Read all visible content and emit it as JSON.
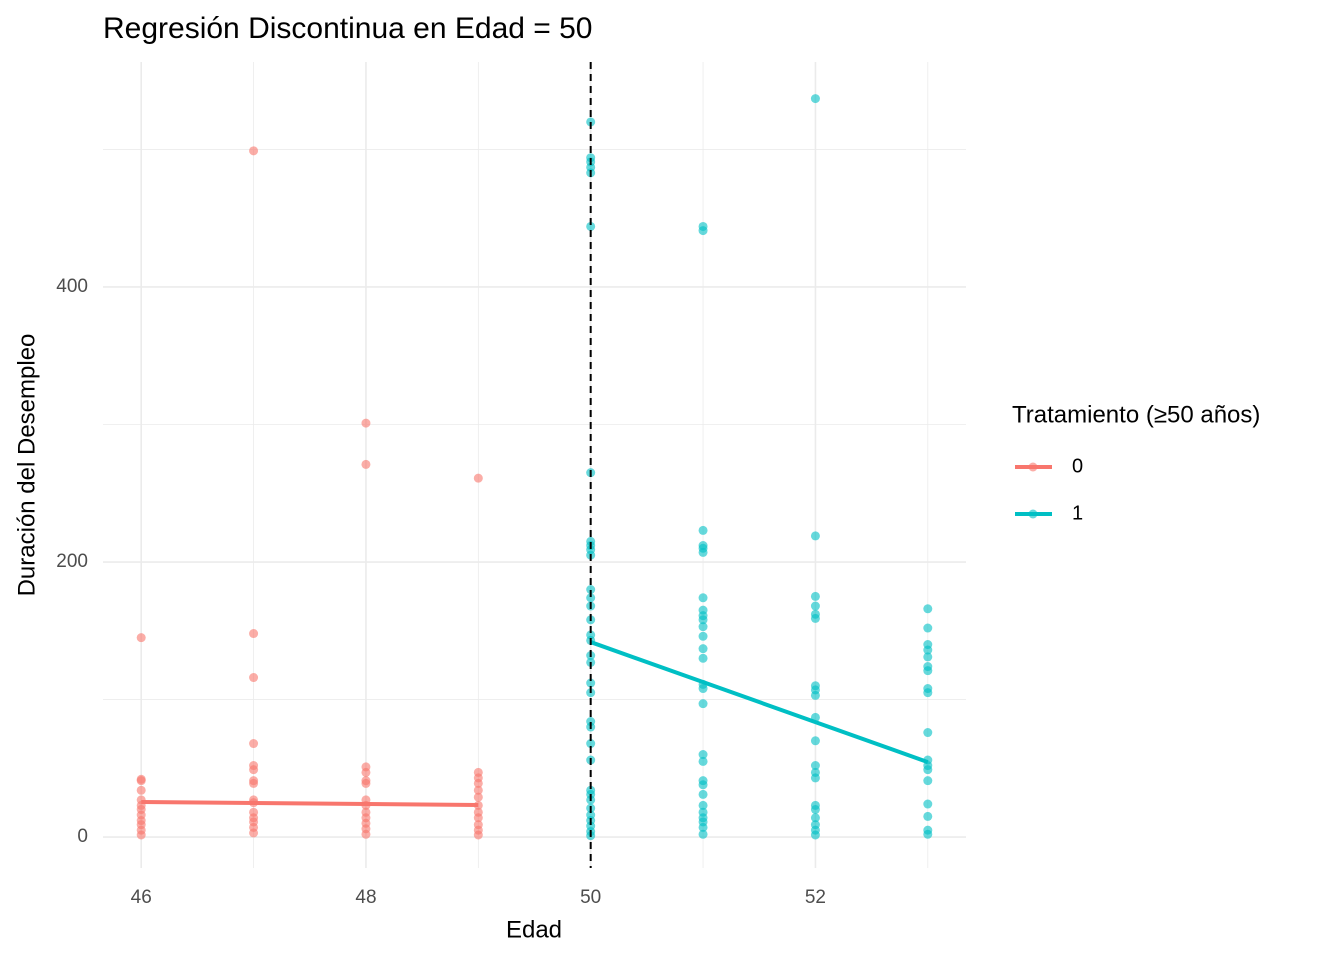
{
  "chart_data": {
    "type": "scatter",
    "title": "Regresión Discontinua en Edad = 50",
    "xlabel": "Edad",
    "ylabel": "Duración del Desempleo",
    "xlim": [
      45.66,
      53.34
    ],
    "ylim": [
      -22.5,
      563.6
    ],
    "xticks": [
      46,
      48,
      50,
      52
    ],
    "yticks": [
      0,
      200,
      400
    ],
    "xminorticks": [
      47,
      49,
      51,
      53
    ],
    "yminorticks": [
      100,
      300,
      500
    ],
    "grid": true,
    "vline": 50,
    "legend_title": "Tratamiento (≥50 años)",
    "legend": "right",
    "series": [
      {
        "name": "0",
        "color": "#F8766D",
        "x": [
          46,
          46,
          46,
          46,
          46,
          46,
          46,
          46,
          46,
          46,
          46,
          46,
          47,
          47,
          47,
          47,
          47,
          47,
          47,
          47,
          47,
          47,
          47,
          47,
          47,
          47,
          47,
          48,
          48,
          48,
          48,
          48,
          48,
          48,
          48,
          48,
          48,
          48,
          48,
          48,
          49,
          49,
          49,
          49,
          49,
          49,
          49,
          49,
          49,
          49,
          49,
          49
        ],
        "values": [
          145,
          42,
          41,
          34,
          27,
          23,
          20,
          16,
          12,
          9,
          5,
          1.5,
          499,
          148,
          116,
          68,
          52,
          49,
          41,
          39,
          27,
          25,
          18,
          14,
          11,
          7,
          3,
          301,
          271,
          51,
          47,
          41,
          39,
          27,
          23,
          18,
          14,
          10,
          6,
          2,
          261,
          47,
          43,
          39,
          34,
          29,
          23,
          18,
          14,
          9,
          5,
          1.5
        ],
        "fit": {
          "x": [
            46,
            49
          ],
          "values": [
            25.5,
            23.3
          ]
        }
      },
      {
        "name": "1",
        "color": "#00BFC4",
        "x": [
          50,
          50,
          50,
          50,
          50,
          50,
          50,
          50,
          50,
          50,
          50,
          50,
          50,
          50,
          50,
          50,
          50,
          50,
          50,
          50,
          50,
          50,
          50,
          50,
          50,
          50,
          50,
          50,
          50,
          50,
          50,
          50,
          50,
          50,
          51,
          51,
          51,
          51,
          51,
          51,
          51,
          51,
          51,
          51,
          51,
          51,
          51,
          51,
          51,
          51,
          51,
          51,
          51,
          51,
          51,
          51,
          51,
          51,
          51,
          51,
          51,
          51,
          52,
          52,
          52,
          52,
          52,
          52,
          52,
          52,
          52,
          52,
          52,
          52,
          52,
          52,
          52,
          52,
          52,
          52,
          52,
          52,
          53,
          53,
          53,
          53,
          53,
          53,
          53,
          53,
          53,
          53,
          53,
          53,
          53,
          53,
          53,
          53,
          53,
          53
        ],
        "values": [
          520,
          494,
          491,
          487,
          483,
          444,
          265,
          215,
          212,
          209,
          205,
          180,
          174,
          168,
          158,
          147,
          143,
          132,
          127,
          112,
          105,
          84,
          80,
          68,
          56,
          34,
          31,
          27,
          21,
          16,
          12,
          8,
          4,
          1,
          444,
          441,
          223,
          212,
          210,
          207,
          174,
          165,
          161,
          158,
          153,
          146,
          137,
          130,
          111,
          108,
          97,
          60,
          55,
          41,
          38,
          31,
          23,
          18,
          14,
          11,
          7,
          2,
          537,
          219,
          175,
          168,
          162,
          159,
          110,
          107,
          103,
          87,
          70,
          52,
          47,
          43,
          23,
          20,
          14,
          9,
          5,
          1.5,
          166,
          152,
          140,
          136,
          131,
          124,
          121,
          108,
          105,
          76,
          56,
          52,
          49,
          41,
          24,
          15,
          5,
          2
        ],
        "fit": {
          "x": [
            50,
            53
          ],
          "values": [
            141.8,
            54.5
          ]
        }
      }
    ]
  }
}
